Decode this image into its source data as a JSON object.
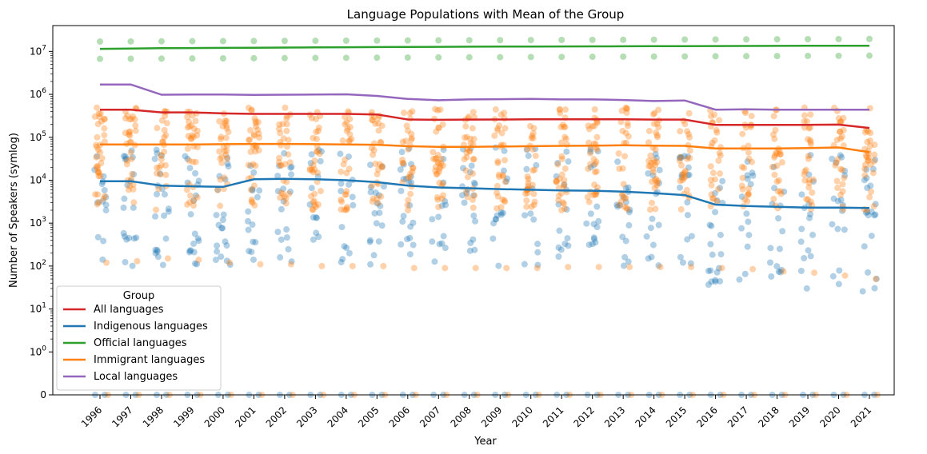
{
  "chart_data": {
    "type": "line",
    "title": "Language Populations with Mean of the Group",
    "xlabel": "Year",
    "ylabel": "Number of Speakers (symlog)",
    "yscale": "symlog",
    "ylim": [
      0,
      40000000
    ],
    "y_ticks": [
      {
        "value": 0,
        "label": "0"
      },
      {
        "value": 1,
        "label": "10",
        "exp": "0"
      },
      {
        "value": 10,
        "label": "10",
        "exp": "1"
      },
      {
        "value": 100,
        "label": "10",
        "exp": "2"
      },
      {
        "value": 1000,
        "label": "10",
        "exp": "3"
      },
      {
        "value": 10000,
        "label": "10",
        "exp": "4"
      },
      {
        "value": 100000,
        "label": "10",
        "exp": "5"
      },
      {
        "value": 1000000,
        "label": "10",
        "exp": "6"
      },
      {
        "value": 10000000,
        "label": "10",
        "exp": "7"
      }
    ],
    "categories": [
      "1996",
      "1997",
      "1998",
      "1999",
      "2000",
      "2001",
      "2002",
      "2003",
      "2004",
      "2005",
      "2006",
      "2007",
      "2008",
      "2009",
      "2010",
      "2011",
      "2012",
      "2013",
      "2014",
      "2015",
      "2016",
      "2017",
      "2018",
      "2019",
      "2020",
      "2021"
    ],
    "grid": false,
    "legend": {
      "title": "Group",
      "placement": "lower-left"
    },
    "series": [
      {
        "name": "All languages",
        "color": "#d62728",
        "values": [
          440000,
          440000,
          380000,
          380000,
          360000,
          350000,
          350000,
          350000,
          350000,
          340000,
          260000,
          255000,
          258000,
          260000,
          262000,
          262000,
          262000,
          262000,
          258000,
          258000,
          195000,
          195000,
          195000,
          195000,
          197000,
          165000
        ]
      },
      {
        "name": "Indigenous languages",
        "color": "#1f77b4",
        "values": [
          9500,
          9500,
          7500,
          7200,
          7000,
          10500,
          10800,
          10500,
          10000,
          9000,
          7500,
          6800,
          6500,
          6200,
          6000,
          5800,
          5700,
          5400,
          5000,
          4500,
          2700,
          2500,
          2400,
          2300,
          2300,
          2250
        ]
      },
      {
        "name": "Official languages",
        "color": "#2ca02c",
        "values": [
          11500000,
          11700000,
          11900000,
          12000000,
          12100000,
          12200000,
          12300000,
          12400000,
          12500000,
          12600000,
          12700000,
          12800000,
          12900000,
          12950000,
          13000000,
          13050000,
          13100000,
          13200000,
          13250000,
          13300000,
          13350000,
          13400000,
          13450000,
          13500000,
          13550000,
          13600000
        ]
      },
      {
        "name": "Immigrant languages",
        "color": "#ff7f0e",
        "values": [
          68000,
          68000,
          68000,
          68000,
          69000,
          70000,
          70000,
          69000,
          68000,
          67000,
          62000,
          60000,
          60000,
          61000,
          62000,
          63000,
          64000,
          65000,
          64000,
          63000,
          55000,
          55000,
          55000,
          56000,
          58000,
          45000
        ]
      },
      {
        "name": "Local languages",
        "color": "#9467bd",
        "values": [
          1700000,
          1700000,
          980000,
          990000,
          990000,
          970000,
          980000,
          990000,
          1000000,
          920000,
          780000,
          730000,
          760000,
          770000,
          780000,
          760000,
          760000,
          740000,
          700000,
          720000,
          440000,
          450000,
          440000,
          440000,
          440000,
          440000
        ]
      }
    ],
    "scatter": {
      "official_color": "#2ca02c",
      "official_upper": [
        17000000,
        17100000,
        17200000,
        17300000,
        17400000,
        17500000,
        17600000,
        17700000,
        17800000,
        17900000,
        18000000,
        18100000,
        18200000,
        18300000,
        18400000,
        18500000,
        18600000,
        18700000,
        18800000,
        18900000,
        19000000,
        19100000,
        19200000,
        19300000,
        19400000,
        19500000
      ],
      "official_lower": [
        6700000,
        6750000,
        6800000,
        6850000,
        6900000,
        6950000,
        7000000,
        7050000,
        7100000,
        7150000,
        7200000,
        7250000,
        7300000,
        7350000,
        7400000,
        7450000,
        7500000,
        7550000,
        7600000,
        7650000,
        7700000,
        7750000,
        7800000,
        7850000,
        7900000,
        7950000
      ],
      "immigrant_color": "#ff7f0e",
      "immigrant_range": [
        2000,
        500000
      ],
      "immigrant_low_outlier": [
        120,
        130,
        150,
        140,
        120,
        110,
        110,
        100,
        100,
        100,
        90,
        90,
        90,
        90,
        90,
        95,
        95,
        95,
        95,
        95,
        90,
        85,
        75,
        70,
        60,
        50
      ],
      "indigenous_color": "#1f77b4",
      "indigenous_range": [
        100,
        60000
      ],
      "indigenous_range_late": [
        25,
        40000
      ]
    }
  }
}
